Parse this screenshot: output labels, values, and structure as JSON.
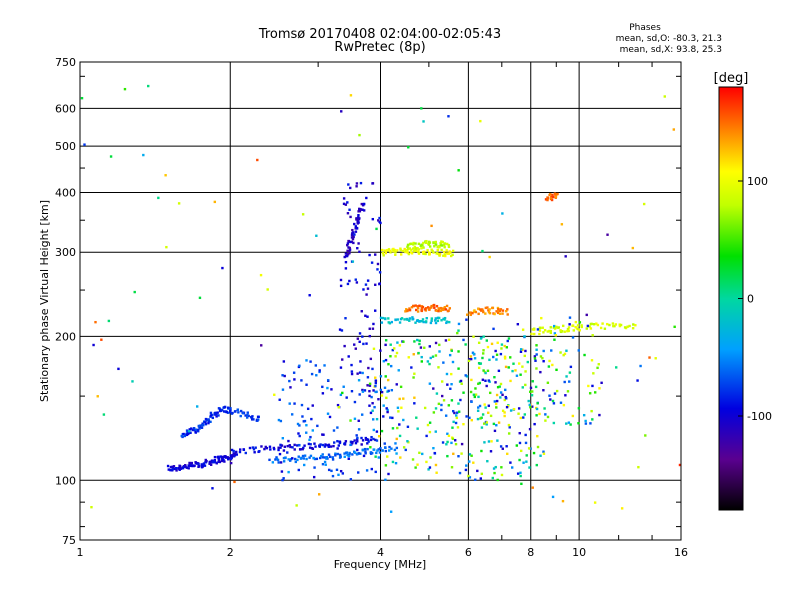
{
  "chart_data": {
    "type": "scatter",
    "title": "Tromsø 20170408 02:04:00-02:05:43",
    "subtitle": "RwPretec (8p)",
    "xlabel": "Frequency [MHz]",
    "ylabel": "Stationary phase Virtual Height [km]",
    "x_scale": "log",
    "y_scale": "log",
    "xlim": [
      1,
      16
    ],
    "ylim": [
      75,
      750
    ],
    "x_ticks": [
      1,
      2,
      4,
      6,
      8,
      10,
      16
    ],
    "x_tick_labels": [
      "1",
      "2",
      "4",
      "6",
      "8",
      "10",
      "16"
    ],
    "y_ticks": [
      75,
      100,
      200,
      300,
      400,
      500,
      600,
      750
    ],
    "y_tick_labels": [
      "75",
      "100",
      "200",
      "300",
      "400",
      "500",
      "600",
      "750"
    ],
    "grid": true,
    "stats": {
      "header": "Phases",
      "line_o": "mean, sd,O: -80.3, 21.3",
      "line_x": "mean, sd,X: 93.8, 25.3"
    },
    "colorbar": {
      "label": "[deg]",
      "ticks": [
        100,
        0,
        -100
      ],
      "tick_labels": [
        "100",
        "0",
        "-100"
      ],
      "range": [
        -180,
        180
      ],
      "colormap": "rainbow"
    },
    "trace_groups": [
      {
        "x": [
          1.5,
          1.55,
          1.6,
          1.65,
          1.7,
          1.75,
          1.8,
          1.85,
          1.9,
          1.95,
          2.0,
          2.05
        ],
        "y": [
          106,
          106,
          107,
          107,
          108,
          108,
          109,
          110,
          111,
          111,
          112,
          113
        ],
        "phase": -100
      },
      {
        "x": [
          1.6,
          1.65,
          1.7,
          1.75,
          1.8,
          1.85,
          1.9,
          1.95,
          2.0,
          2.1,
          2.2,
          2.3
        ],
        "y": [
          125,
          126,
          128,
          130,
          133,
          137,
          140,
          141,
          140,
          138,
          136,
          134
        ],
        "phase": -80
      },
      {
        "x": [
          2.0,
          2.2,
          2.4,
          2.6,
          2.8,
          3.0,
          3.2,
          3.5,
          3.7,
          3.9
        ],
        "y": [
          115,
          116,
          117,
          117,
          118,
          118,
          119,
          120,
          121,
          122
        ],
        "phase": -95
      },
      {
        "x": [
          2.4,
          2.6,
          2.8,
          3.0,
          3.2,
          3.4,
          3.6,
          3.8,
          4.0,
          4.3
        ],
        "y": [
          110,
          111,
          111,
          112,
          112,
          113,
          114,
          115,
          116,
          118
        ],
        "phase": -60
      },
      {
        "x": [
          3.4,
          3.45,
          3.5,
          3.55,
          3.6,
          3.65,
          3.7
        ],
        "y": [
          290,
          305,
          320,
          335,
          350,
          365,
          380
        ],
        "phase": -110
      },
      {
        "x": [
          4.0,
          4.2,
          4.4,
          4.6,
          4.8,
          5.0,
          5.2,
          5.4,
          5.6
        ],
        "y": [
          300,
          301,
          301,
          302,
          302,
          301,
          300,
          299,
          298
        ],
        "phase": 100
      },
      {
        "x": [
          4.5,
          4.7,
          4.9,
          5.1,
          5.3,
          5.5
        ],
        "y": [
          308,
          310,
          312,
          313,
          312,
          310
        ],
        "phase": 80
      },
      {
        "x": [
          4.5,
          4.7,
          4.9,
          5.1,
          5.3,
          5.5
        ],
        "y": [
          228,
          229,
          229,
          230,
          229,
          228
        ],
        "phase": 150
      },
      {
        "x": [
          4.0,
          4.3,
          4.6,
          4.9,
          5.2,
          5.5
        ],
        "y": [
          216,
          216,
          217,
          217,
          216,
          215
        ],
        "phase": -20
      },
      {
        "x": [
          6.0,
          6.3,
          6.6,
          6.9,
          7.2
        ],
        "y": [
          225,
          226,
          227,
          226,
          225
        ],
        "phase": 140
      },
      {
        "x": [
          8.0,
          8.5,
          9.0,
          9.5,
          10.0,
          11.0,
          12.0,
          13.0
        ],
        "y": [
          205,
          206,
          207,
          208,
          209,
          210,
          210,
          211
        ],
        "phase": 90
      },
      {
        "x": [
          8.6,
          8.8,
          9.0
        ],
        "y": [
          390,
          392,
          393
        ],
        "phase": 150
      }
    ],
    "scatter_clusters": [
      {
        "x_range": [
          3.8,
          8.5
        ],
        "y_range": [
          100,
          200
        ],
        "count": 320,
        "phase_range": [
          -120,
          130
        ]
      },
      {
        "x_range": [
          3.3,
          4.0
        ],
        "y_range": [
          150,
          420
        ],
        "count": 80,
        "phase_range": [
          -120,
          -80
        ]
      },
      {
        "x_range": [
          5.5,
          11.0
        ],
        "y_range": [
          130,
          220
        ],
        "count": 160,
        "phase_range": [
          -110,
          120
        ]
      },
      {
        "x_range": [
          2.5,
          4.2
        ],
        "y_range": [
          100,
          180
        ],
        "count": 140,
        "phase_range": [
          -110,
          -40
        ]
      },
      {
        "x_range": [
          1.0,
          16.0
        ],
        "y_range": [
          80,
          700
        ],
        "count": 90,
        "phase_range": [
          -130,
          170
        ]
      }
    ]
  }
}
